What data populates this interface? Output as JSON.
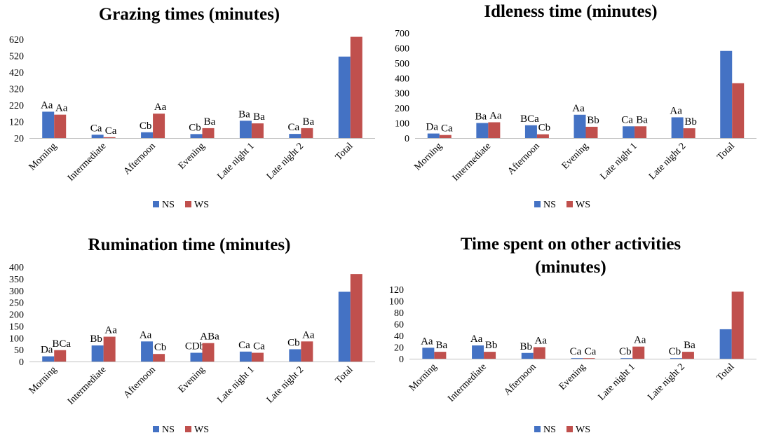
{
  "colors": {
    "NS": "#4472c4",
    "WS": "#c0504d",
    "axis": "#bfbfbf"
  },
  "chart_data": [
    {
      "type": "bar",
      "title": [
        "Grazing times (minutes)"
      ],
      "categories": [
        "Morning",
        "Intermediate",
        "Afternoon",
        "Evening",
        "Late night 1",
        "Late night 2",
        "Total"
      ],
      "ylim": [
        20,
        680
      ],
      "yticks": [
        20,
        120,
        220,
        320,
        420,
        520,
        620
      ],
      "legend": "bottom",
      "series": [
        {
          "name": "NS",
          "values": [
            180,
            40,
            55,
            44,
            125,
            45,
            515
          ],
          "labels": [
            "Aa",
            "Ca",
            "Cb",
            "Cb",
            "Ba",
            "Ca",
            ""
          ]
        },
        {
          "name": "WS",
          "values": [
            162,
            25,
            168,
            80,
            109,
            80,
            635
          ],
          "labels": [
            "Aa",
            "Ca",
            "Aa",
            "Ba",
            "Ba",
            "Ba",
            ""
          ]
        }
      ]
    },
    {
      "type": "bar",
      "title": [
        "Idleness time (minutes)"
      ],
      "categories": [
        "Morning",
        "Intermediate",
        "Afternoon",
        "Evening",
        "Late night 1",
        "Late night 2",
        "Total"
      ],
      "ylim": [
        0,
        700
      ],
      "yticks": [
        0,
        100,
        200,
        300,
        400,
        500,
        600,
        700
      ],
      "legend": "bottom",
      "series": [
        {
          "name": "NS",
          "values": [
            30,
            100,
            85,
            155,
            78,
            138,
            580
          ],
          "labels": [
            "Da",
            "Ba",
            "BCa",
            "Aa",
            "Ca",
            "Aa",
            ""
          ]
        },
        {
          "name": "WS",
          "values": [
            20,
            105,
            25,
            75,
            78,
            65,
            365
          ],
          "labels": [
            "Ca",
            "Aa",
            "Cb",
            "Bb",
            "Ba",
            "Bb",
            ""
          ]
        }
      ]
    },
    {
      "type": "bar",
      "title": [
        "Rumination time (minutes)"
      ],
      "categories": [
        "Morning",
        "Intermediate",
        "Afternoon",
        "Evening",
        "Late night 1",
        "Late night 2",
        "Total"
      ],
      "ylim": [
        0,
        400
      ],
      "yticks": [
        0,
        50,
        100,
        150,
        200,
        250,
        300,
        350,
        400
      ],
      "legend": "bottom",
      "series": [
        {
          "name": "NS",
          "values": [
            22,
            68,
            85,
            37,
            42,
            52,
            295
          ],
          "labels": [
            "Da",
            "Bb",
            "Aa",
            "CDb",
            "Ca",
            "Cb",
            ""
          ]
        },
        {
          "name": "WS",
          "values": [
            48,
            105,
            32,
            78,
            37,
            85,
            370
          ],
          "labels": [
            "BCa",
            "Aa",
            "Cb",
            "ABa",
            "Ca",
            "Aa",
            ""
          ]
        }
      ]
    },
    {
      "type": "bar",
      "title": [
        "Time spent on other activities",
        "(minutes)"
      ],
      "categories": [
        "Morning",
        "Intermediate",
        "Afternoon",
        "Evening",
        "Late night 1",
        "Late night 2",
        "Total"
      ],
      "ylim": [
        0,
        120
      ],
      "yticks": [
        0,
        20,
        40,
        60,
        80,
        100,
        120
      ],
      "legend": "bottom",
      "series": [
        {
          "name": "NS",
          "values": [
            19,
            23,
            10,
            1,
            1,
            1,
            51
          ],
          "labels": [
            "Aa",
            "Aa",
            "Bb",
            "Ca",
            "Cb",
            "Cb",
            ""
          ]
        },
        {
          "name": "WS",
          "values": [
            12,
            12,
            20,
            1,
            21,
            12,
            116
          ],
          "labels": [
            "Ba",
            "Bb",
            "Aa",
            "Ca",
            "Aa",
            "Ba",
            ""
          ]
        }
      ]
    }
  ]
}
